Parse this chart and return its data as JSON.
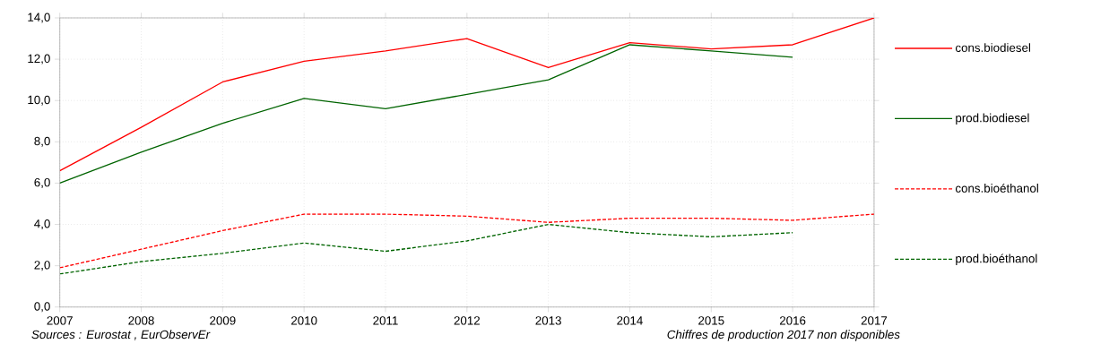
{
  "chart_data": {
    "type": "line",
    "x": [
      2007,
      2008,
      2009,
      2010,
      2011,
      2012,
      2013,
      2014,
      2015,
      2016,
      2017
    ],
    "series": [
      {
        "name": "cons.biodiesel",
        "color": "#ff0000",
        "line_style": "solid",
        "values": [
          6.6,
          8.7,
          10.9,
          11.9,
          12.4,
          13.0,
          11.6,
          12.8,
          12.5,
          12.7,
          14.0
        ]
      },
      {
        "name": "prod.biodiesel",
        "color": "#006400",
        "line_style": "solid",
        "values": [
          6.0,
          7.5,
          8.9,
          10.1,
          9.6,
          10.3,
          11.0,
          12.7,
          12.4,
          12.1,
          null
        ]
      },
      {
        "name": "cons.bioéthanol",
        "color": "#ff0000",
        "line_style": "dashed",
        "values": [
          1.9,
          2.8,
          3.7,
          4.5,
          4.5,
          4.4,
          4.1,
          4.3,
          4.3,
          4.2,
          4.5
        ]
      },
      {
        "name": "prod.bioéthanol",
        "color": "#006400",
        "line_style": "dashed",
        "values": [
          1.6,
          2.2,
          2.6,
          3.1,
          2.7,
          3.2,
          4.0,
          3.6,
          3.4,
          3.6,
          null
        ]
      }
    ],
    "xlim": [
      2007,
      2017
    ],
    "xticks": [
      2007,
      2008,
      2009,
      2010,
      2011,
      2012,
      2013,
      2014,
      2015,
      2016,
      2017
    ],
    "ylim": [
      0,
      14
    ],
    "yticks": [
      {
        "value": 0,
        "label": "0,0"
      },
      {
        "value": 2,
        "label": "2,0"
      },
      {
        "value": 4,
        "label": "4,0"
      },
      {
        "value": 6,
        "label": "6,0"
      },
      {
        "value": 8,
        "label": "8,0"
      },
      {
        "value": 10,
        "label": "10,0"
      },
      {
        "value": 12,
        "label": "12,0"
      },
      {
        "value": 14,
        "label": "14,0"
      }
    ],
    "grid": true,
    "legend": "right",
    "marker": "none",
    "annotations": [
      "Sources : Eurostat , EurObservEr",
      "Chiffres de production 2017 non disponibles"
    ]
  }
}
